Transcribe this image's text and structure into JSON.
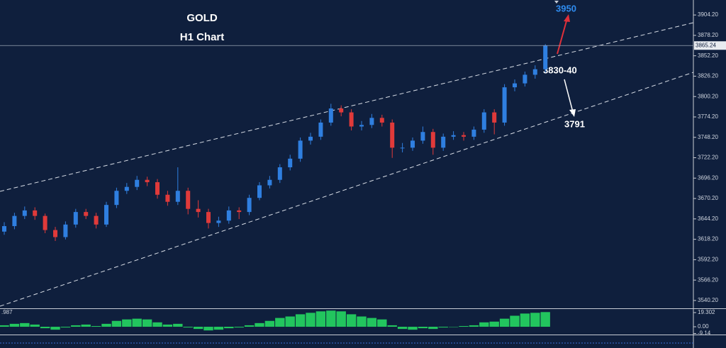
{
  "chart_data": [
    {
      "type": "candlestick",
      "title": "GOLD",
      "subtitle": "H1 Chart",
      "open": [
        3628,
        3635,
        3648,
        3655,
        3648,
        3630,
        3621,
        3637,
        3653,
        3648,
        3637,
        3662,
        3680,
        3685,
        3694,
        3691,
        3675,
        3666,
        3680,
        3657,
        3653,
        3639,
        3642,
        3655,
        3653,
        3671,
        3687,
        3694,
        3710,
        3721,
        3744,
        3749,
        3767,
        3785,
        3780,
        3762,
        3764,
        3773,
        3767,
        3735,
        3735,
        3744,
        3755,
        3735,
        3749,
        3751,
        3749,
        3758,
        3780,
        3767,
        3812,
        3817,
        3828,
        3835
      ],
      "high": [
        3640,
        3652,
        3660,
        3659,
        3651,
        3634,
        3641,
        3657,
        3657,
        3652,
        3666,
        3684,
        3690,
        3699,
        3698,
        3695,
        3680,
        3710,
        3684,
        3668,
        3657,
        3647,
        3660,
        3659,
        3675,
        3691,
        3699,
        3714,
        3726,
        3748,
        3754,
        3771,
        3791,
        3789,
        3784,
        3769,
        3778,
        3777,
        3771,
        3741,
        3748,
        3762,
        3759,
        3753,
        3756,
        3755,
        3762,
        3784,
        3784,
        3816,
        3822,
        3832,
        3840,
        3867
      ],
      "low": [
        3624,
        3631,
        3644,
        3643,
        3626,
        3616,
        3618,
        3633,
        3644,
        3632,
        3634,
        3658,
        3676,
        3681,
        3686,
        3670,
        3661,
        3662,
        3650,
        3646,
        3632,
        3634,
        3638,
        3644,
        3649,
        3668,
        3683,
        3690,
        3706,
        3717,
        3739,
        3745,
        3763,
        3775,
        3757,
        3757,
        3760,
        3762,
        3722,
        3729,
        3731,
        3740,
        3726,
        3731,
        3745,
        3744,
        3745,
        3754,
        3752,
        3763,
        3807,
        3813,
        3823,
        3831
      ],
      "close": [
        3635,
        3648,
        3655,
        3648,
        3630,
        3621,
        3637,
        3653,
        3648,
        3637,
        3662,
        3680,
        3685,
        3694,
        3691,
        3675,
        3666,
        3680,
        3657,
        3653,
        3639,
        3642,
        3655,
        3653,
        3671,
        3687,
        3694,
        3710,
        3721,
        3744,
        3749,
        3767,
        3785,
        3780,
        3762,
        3764,
        3773,
        3767,
        3735,
        3735,
        3744,
        3755,
        3735,
        3749,
        3751,
        3749,
        3758,
        3780,
        3767,
        3812,
        3817,
        3828,
        3835,
        3865.24
      ],
      "up_color": "#2f7fe0",
      "down_color": "#e03a3a",
      "ylim": [
        3530.2,
        3923.3
      ],
      "yticks": [
        {
          "value": 3540.2,
          "label": "3540.20"
        },
        {
          "value": 3566.2,
          "label": "3566.20"
        },
        {
          "value": 3592.2,
          "label": "3592.20"
        },
        {
          "value": 3618.2,
          "label": "3618.20"
        },
        {
          "value": 3644.2,
          "label": "3644.20"
        },
        {
          "value": 3670.2,
          "label": "3670.20"
        },
        {
          "value": 3696.2,
          "label": "3696.20"
        },
        {
          "value": 3722.2,
          "label": "3722.20"
        },
        {
          "value": 3748.2,
          "label": "3748.20"
        },
        {
          "value": 3774.2,
          "label": "3774.20"
        },
        {
          "value": 3800.2,
          "label": "3800.20"
        },
        {
          "value": 3826.2,
          "label": "3826.20"
        },
        {
          "value": 3852.2,
          "label": "3852.20"
        },
        {
          "value": 3878.2,
          "label": "3878.20"
        },
        {
          "value": 3904.2,
          "label": "3904.20"
        }
      ],
      "last_price": 3865.24,
      "grid": false,
      "annotations": [
        "3950",
        "3830-40",
        "3791"
      ]
    },
    {
      "type": "bar",
      "indicator_label": ".987",
      "values": [
        2,
        4,
        5,
        3,
        -2,
        -4,
        -1,
        2,
        3,
        1,
        4,
        8,
        10,
        11,
        10,
        6,
        3,
        4,
        -1,
        -3,
        -5,
        -4,
        -2,
        -1,
        2,
        5,
        8,
        12,
        14,
        17,
        19,
        21,
        22,
        21,
        17,
        14,
        12,
        10,
        2,
        -3,
        -4,
        -2,
        -3,
        -1,
        0,
        1,
        2,
        6,
        7,
        11,
        15,
        18,
        19,
        20
      ],
      "color": "#22c55e",
      "ylim": [
        -10.6,
        23.2
      ],
      "yticks": [
        19.302,
        {
          "value": 0,
          "label": "0.00"
        },
        -9.14
      ],
      "grid": false
    }
  ]
}
